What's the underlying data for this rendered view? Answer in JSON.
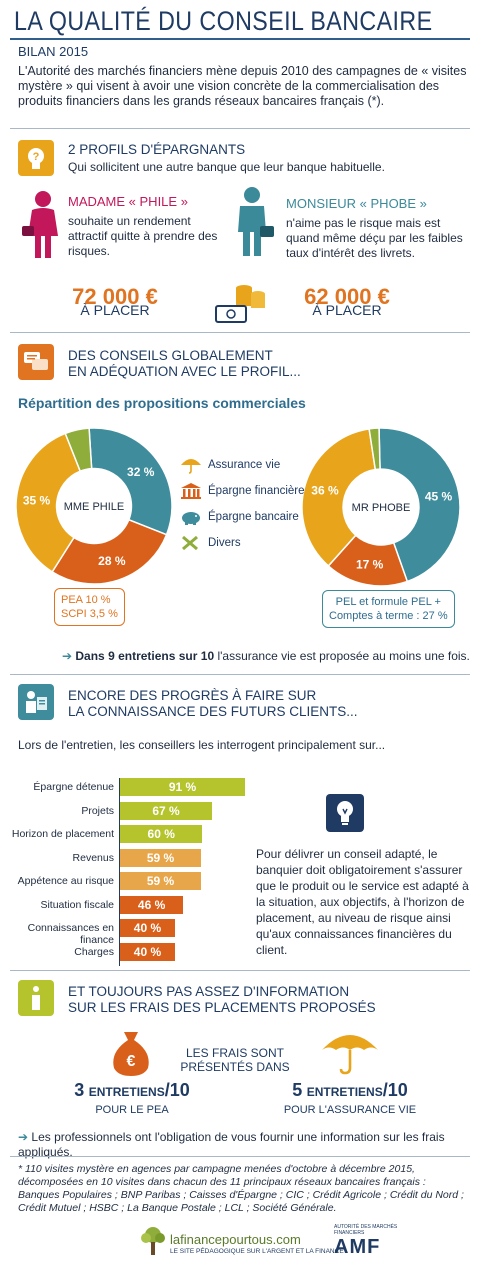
{
  "header": {
    "title": "LA QUALITÉ DU CONSEIL BANCAIRE",
    "subtitle": "BILAN 2015",
    "intro": "L'Autorité des marchés financiers mène depuis 2010 des campagnes de « visites mystère » qui visent à avoir une vision concrète de la commercialisation des produits financiers dans les grands réseaux bancaires français (*)."
  },
  "section1": {
    "title": "2 PROFILS D'ÉPARGNANTS",
    "subtitle": "Qui sollicitent une autre banque que leur banque habituelle.",
    "madame": {
      "name": "MADAME « PHILE »",
      "desc": "souhaite un rendement attractif quitte à prendre des risques.",
      "amount": "72 000 €",
      "place": "À PLACER"
    },
    "monsieur": {
      "name": "MONSIEUR « PHOBE »",
      "desc": "n'aime pas le risque mais est quand même déçu par les faibles taux d'intérêt des livrets.",
      "amount": "62 000 €",
      "place": "À PLACER"
    }
  },
  "section2": {
    "title_line1": "DES CONSEILS GLOBALEMENT",
    "title_line2": "EN ADÉQUATION AVEC LE PROFIL...",
    "chart_title": "Répartition des propositions commerciales",
    "legend": [
      "Assurance vie",
      "Épargne financière",
      "Épargne bancaire",
      "Divers"
    ],
    "note_phile_1": "PEA 10 %",
    "note_phile_2": "SCPI 3,5 %",
    "note_phobe_1": "PEL et formule PEL +",
    "note_phobe_2": "Comptes à terme : 27 %",
    "conclusion_bold": "Dans 9 entretiens sur 10",
    "conclusion_rest": " l'assurance vie est proposée au moins une fois."
  },
  "chart_data": [
    {
      "type": "pie",
      "title": "MME PHILE",
      "categories": [
        "Épargne bancaire",
        "Épargne financière",
        "Assurance vie",
        "Divers"
      ],
      "values": [
        32,
        28,
        35,
        5
      ],
      "labels": [
        "32 %",
        "28 %",
        "35 %",
        ""
      ],
      "colors": [
        "#3f8d9c",
        "#d9601a",
        "#e8a51c",
        "#8fad3a"
      ]
    },
    {
      "type": "pie",
      "title": "MR PHOBE",
      "categories": [
        "Épargne bancaire",
        "Épargne financière",
        "Assurance vie",
        "Divers"
      ],
      "values": [
        45,
        17,
        36,
        2
      ],
      "labels": [
        "45 %",
        "17 %",
        "36 %",
        ""
      ],
      "colors": [
        "#3f8d9c",
        "#d9601a",
        "#e8a51c",
        "#8fad3a"
      ]
    },
    {
      "type": "bar",
      "categories": [
        "Épargne détenue",
        "Projets",
        "Horizon de placement",
        "Revenus",
        "Appétence au risque",
        "Situation fiscale",
        "Connaissances en finance",
        "Charges"
      ],
      "values": [
        91,
        67,
        60,
        59,
        59,
        46,
        40,
        40
      ],
      "labels": [
        "91 %",
        "67 %",
        "60 %",
        "59 %",
        "59 %",
        "46 %",
        "40 %",
        "40 %"
      ],
      "colors": [
        "#b5c42c",
        "#b5c42c",
        "#b5c42c",
        "#e8a64a",
        "#e8a64a",
        "#d9601a",
        "#d9601a",
        "#d9601a"
      ]
    }
  ],
  "section3": {
    "title_line1": "ENCORE DES PROGRÈS À FAIRE SUR",
    "title_line2": "LA CONNAISSANCE DES FUTURS CLIENTS...",
    "lead": "Lors de l'entretien, les conseillers les interrogent principalement sur...",
    "advice": "Pour délivrer un conseil adapté, le banquier doit obligatoirement s'assurer que le produit ou le service est adapté à la situation, aux objectifs, à l'horizon de placement, au niveau de risque ainsi qu'aux connaissances financières du client."
  },
  "section4": {
    "title_line1": "ET TOUJOURS PAS ASSEZ D'INFORMATION",
    "title_line2": "SUR LES FRAIS DES PLACEMENTS PROPOSÉS",
    "center_line1": "LES FRAIS SONT",
    "center_line2": "PRÉSENTÉS DANS",
    "pea_count": "3",
    "pea_word": "ENTRETIENS",
    "pea_total": "/10",
    "pea_label": "POUR LE PEA",
    "av_count": "5",
    "av_word": "ENTRETIENS",
    "av_total": "/10",
    "av_label": "POUR L'ASSURANCE VIE",
    "conclusion": "Les professionnels ont l'obligation de vous fournir une information sur les frais appliqués."
  },
  "footer": {
    "note": "* 110 visites mystère en agences par campagne menées d'octobre à décembre 2015, décomposées en 10 visites dans chacun des 11 principaux réseaux bancaires français : Banques Populaires ; BNP Paribas ; Caisses d'Épargne ; CIC ; Crédit Agricole ; Crédit du Nord ; Crédit Mutuel ; HSBC ; La Banque Postale ; LCL ; Société Générale.",
    "logo_main": "lafinancepourtous.com",
    "logo_sub": "LE SITE PÉDAGOGIQUE SUR L'ARGENT ET LA FINANCE",
    "amf_small": "AUTORITÉ DES MARCHÉS FINANCIERS",
    "amf": "AMF"
  }
}
